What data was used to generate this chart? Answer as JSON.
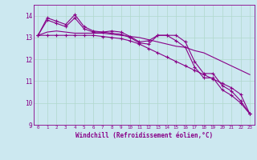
{
  "xlabel": "Windchill (Refroidissement éolien,°C)",
  "background_color": "#cce8f0",
  "grid_color": "#b0d8cc",
  "line_color": "#880088",
  "xlim": [
    -0.5,
    23.5
  ],
  "ylim": [
    9.0,
    14.5
  ],
  "yticks": [
    9,
    10,
    11,
    12,
    13,
    14
  ],
  "xticks": [
    0,
    1,
    2,
    3,
    4,
    5,
    6,
    7,
    8,
    9,
    10,
    11,
    12,
    13,
    14,
    15,
    16,
    17,
    18,
    19,
    20,
    21,
    22,
    23
  ],
  "series": [
    {
      "x": [
        0,
        1,
        2,
        3,
        4,
        5,
        6,
        7,
        8,
        9,
        10,
        11,
        12,
        13,
        14,
        15,
        16,
        17,
        18,
        19,
        20,
        21,
        22,
        23
      ],
      "y": [
        13.1,
        13.25,
        13.3,
        13.25,
        13.2,
        13.2,
        13.2,
        13.2,
        13.15,
        13.1,
        13.05,
        13.0,
        12.9,
        12.8,
        12.7,
        12.6,
        12.55,
        12.4,
        12.3,
        12.1,
        11.9,
        11.7,
        11.5,
        11.3
      ],
      "marker": false
    },
    {
      "x": [
        0,
        1,
        2,
        3,
        4,
        5,
        6,
        7,
        8,
        9,
        10,
        11,
        12,
        13,
        14,
        15,
        16,
        17,
        18,
        19,
        20,
        21,
        22,
        23
      ],
      "y": [
        13.1,
        13.9,
        13.75,
        13.6,
        14.05,
        13.5,
        13.3,
        13.25,
        13.2,
        13.15,
        13.0,
        12.75,
        12.7,
        13.1,
        13.1,
        13.1,
        12.8,
        11.9,
        11.35,
        11.35,
        10.8,
        10.55,
        10.1,
        9.5
      ],
      "marker": true
    },
    {
      "x": [
        0,
        1,
        2,
        3,
        4,
        5,
        6,
        7,
        8,
        9,
        10,
        11,
        12,
        13,
        14,
        15,
        16,
        17,
        18,
        19,
        20,
        21,
        22,
        23
      ],
      "y": [
        13.1,
        13.8,
        13.65,
        13.5,
        13.9,
        13.4,
        13.25,
        13.25,
        13.3,
        13.25,
        13.05,
        12.8,
        12.85,
        13.1,
        13.1,
        12.85,
        12.55,
        11.65,
        11.15,
        11.15,
        10.6,
        10.35,
        10.0,
        9.5
      ],
      "marker": true
    },
    {
      "x": [
        0,
        1,
        2,
        3,
        4,
        5,
        6,
        7,
        8,
        9,
        10,
        11,
        12,
        13,
        14,
        15,
        16,
        17,
        18,
        19,
        20,
        21,
        22,
        23
      ],
      "y": [
        13.1,
        13.1,
        13.1,
        13.1,
        13.1,
        13.1,
        13.1,
        13.05,
        13.0,
        12.95,
        12.85,
        12.7,
        12.5,
        12.3,
        12.1,
        11.9,
        11.7,
        11.5,
        11.3,
        11.1,
        10.9,
        10.7,
        10.4,
        9.5
      ],
      "marker": true
    }
  ]
}
